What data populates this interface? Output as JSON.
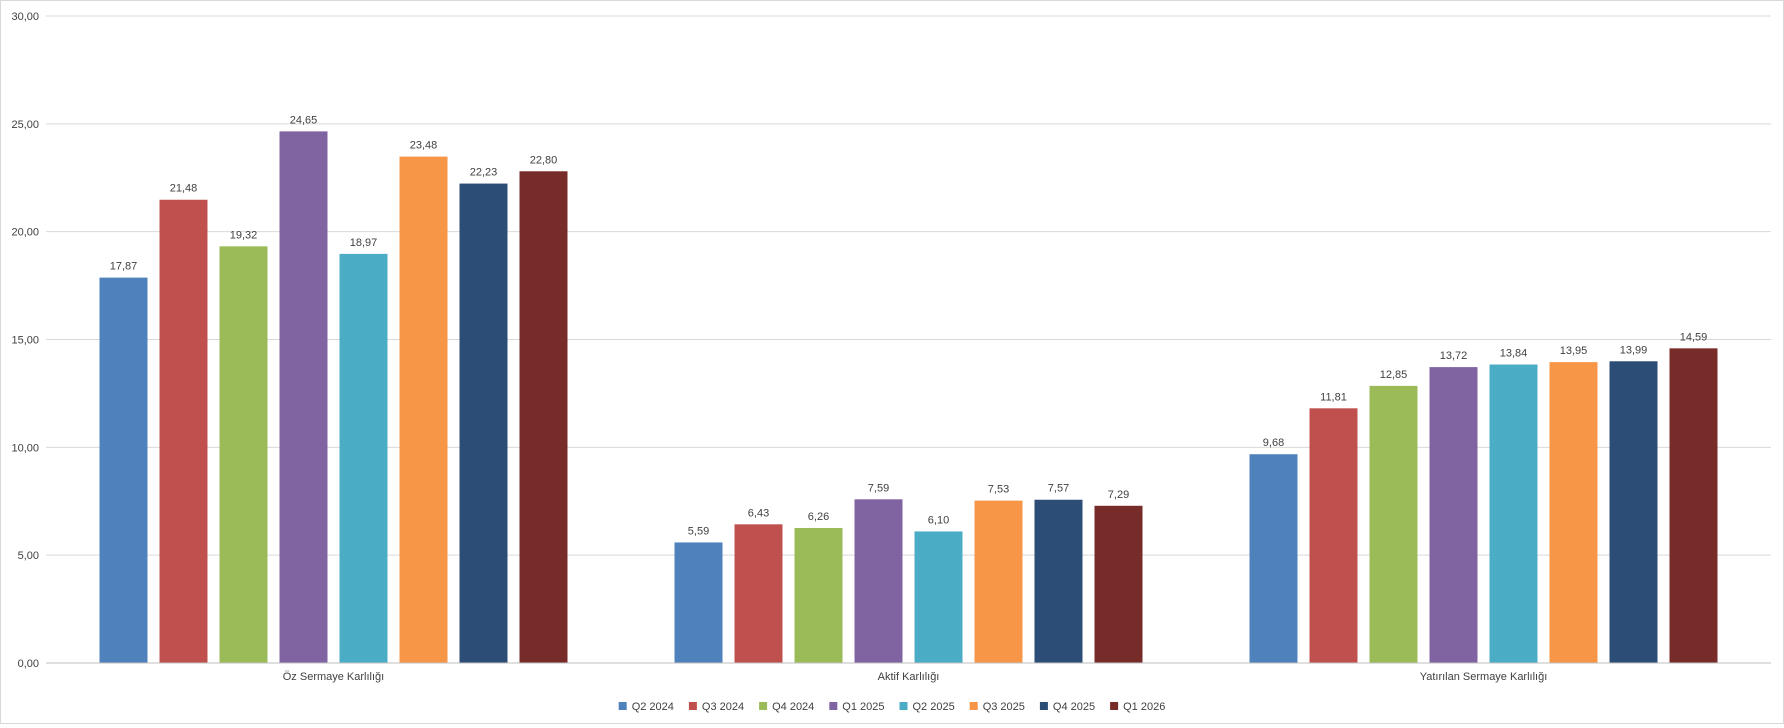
{
  "chart_data": {
    "type": "bar",
    "title": "",
    "xlabel": "",
    "ylabel": "",
    "categories": [
      "Öz Sermaye Karlılığı",
      "Aktif Karlılığı",
      "Yatırılan Sermaye Karlılığı"
    ],
    "series": [
      {
        "name": "Q2 2024",
        "color": "#4F81BD",
        "values": [
          17.87,
          5.59,
          9.68
        ],
        "labels": [
          "17,87",
          "5,59",
          "9,68"
        ]
      },
      {
        "name": "Q3 2024",
        "color": "#C0504D",
        "values": [
          21.48,
          6.43,
          11.81
        ],
        "labels": [
          "21,48",
          "6,43",
          "11,81"
        ]
      },
      {
        "name": "Q4 2024",
        "color": "#9BBB59",
        "values": [
          19.32,
          6.26,
          12.85
        ],
        "labels": [
          "19,32",
          "6,26",
          "12,85"
        ]
      },
      {
        "name": "Q1 2025",
        "color": "#8064A2",
        "values": [
          24.65,
          7.59,
          13.72
        ],
        "labels": [
          "24,65",
          "7,59",
          "13,72"
        ]
      },
      {
        "name": "Q2 2025",
        "color": "#4BACC6",
        "values": [
          18.97,
          6.1,
          13.84
        ],
        "labels": [
          "18,97",
          "6,10",
          "13,84"
        ]
      },
      {
        "name": "Q3 2025",
        "color": "#F79646",
        "values": [
          23.48,
          7.53,
          13.95
        ],
        "labels": [
          "23,48",
          "7,53",
          "13,95"
        ]
      },
      {
        "name": "Q4 2025",
        "color": "#2C4D75",
        "values": [
          22.23,
          7.57,
          13.99
        ],
        "labels": [
          "22,23",
          "7,57",
          "13,99"
        ]
      },
      {
        "name": "Q1 2026",
        "color": "#772C2A",
        "values": [
          22.8,
          7.29,
          14.59
        ],
        "labels": [
          "22,80",
          "7,29",
          "14,59"
        ]
      }
    ],
    "ylim": [
      0,
      30
    ],
    "yticks": [
      0,
      5,
      10,
      15,
      20,
      25,
      30
    ],
    "ytick_labels": [
      "0,00",
      "5,00",
      "10,00",
      "15,00",
      "20,00",
      "25,00",
      "30,00"
    ],
    "grid": true,
    "legend_position": "bottom",
    "colors": {
      "gridline": "#d9d9d9",
      "axis": "#bfbfbf",
      "text": "#404040"
    }
  }
}
